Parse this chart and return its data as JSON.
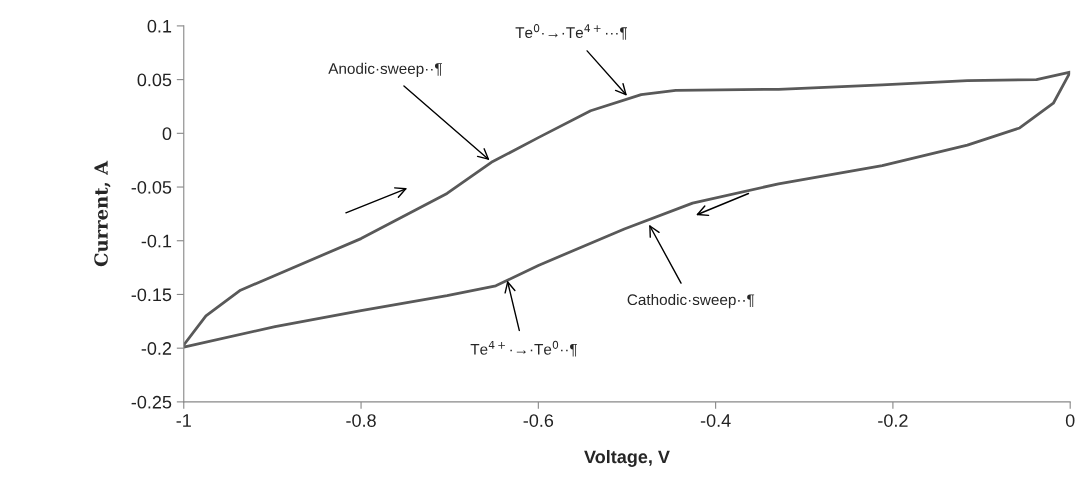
{
  "chart_data": {
    "type": "line",
    "xlabel": "Voltage, V",
    "ylabel": "Current, A",
    "series": [
      {
        "color": "#595959",
        "x": [
          -1,
          -0.975,
          -0.936,
          -0.8,
          -0.703,
          -0.653,
          -0.6,
          -0.541,
          -0.484,
          -0.445,
          -0.329,
          -0.212,
          -0.116,
          -0.038,
          0,
          -0.019,
          -0.057,
          -0.116,
          -0.212,
          -0.329,
          -0.426,
          -0.503,
          -0.6,
          -0.648,
          -0.703,
          -0.8,
          -0.897,
          -1
        ],
        "values": [
          -0.197,
          -0.17,
          -0.146,
          -0.098,
          -0.056,
          -0.027,
          -0.004,
          0.021,
          0.036,
          0.04,
          0.041,
          0.045,
          0.049,
          0.05,
          0.057,
          0.028,
          0.005,
          -0.011,
          -0.03,
          -0.047,
          -0.065,
          -0.089,
          -0.123,
          -0.142,
          -0.151,
          -0.165,
          -0.18,
          -0.199
        ]
      }
    ],
    "xlim": [
      -1,
      0
    ],
    "xticks": [
      -1,
      -0.8,
      -0.6,
      -0.4,
      -0.2,
      0
    ],
    "ylim": [
      -0.25,
      0.1
    ],
    "yticks": [
      -0.25,
      -0.2,
      -0.15,
      -0.1,
      -0.05,
      0,
      0.05,
      0.1
    ],
    "grid": false,
    "legend": false,
    "marker": "none",
    "line_style": "solid",
    "annotations": [
      {
        "text": "Anodic·sweep··¶",
        "x": -0.655,
        "y": -0.025
      },
      {
        "text": "Te$^{0}$·→·Te$^{4+}$···¶",
        "x": -0.5,
        "y": 0.035
      },
      {
        "text": "Cathodic·sweep··¶",
        "x": -0.475,
        "y": -0.085
      },
      {
        "text": "Te$^{4+}$·→·Te$^{0}$··¶",
        "x": -0.635,
        "y": -0.137
      }
    ]
  }
}
